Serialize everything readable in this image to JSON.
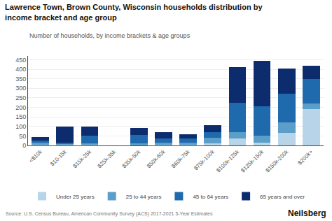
{
  "chart_data": {
    "type": "bar",
    "stacked": true,
    "title": "Lawrence Town, Brown County, Wisconsin households distribution by\nincome bracket and age group",
    "subtitle": "Number of households, by income brackets & age groups",
    "annotations": [
      "Source: U.S. Census Bureau, American Community Survey (ACS) 2017-2021 5-Year Estimates",
      "Neilsberg"
    ],
    "categories": [
      "<$10k",
      "$10-15k",
      "$15k-25k",
      "$25k-35k",
      "$35k-50k",
      "$50k-60k",
      "$60k-75k",
      "$75k-100k",
      "$100k-125k",
      "$125k-150k",
      "$150k-200k",
      "$200k+"
    ],
    "series": [
      {
        "name": "Under 25 years",
        "color": "#b8d4e8",
        "values": [
          5,
          5,
          5,
          0,
          0,
          5,
          5,
          10,
          35,
          15,
          65,
          190
        ]
      },
      {
        "name": "25 to 44 years",
        "color": "#5b9ec9",
        "values": [
          10,
          5,
          5,
          0,
          10,
          10,
          10,
          30,
          35,
          35,
          55,
          30
        ]
      },
      {
        "name": "45 to 64 years",
        "color": "#1f6aad",
        "values": [
          10,
          5,
          40,
          0,
          45,
          20,
          20,
          30,
          155,
          155,
          150,
          130
        ]
      },
      {
        "name": "65 years and over",
        "color": "#0d2c6e",
        "values": [
          20,
          85,
          50,
          0,
          35,
          35,
          25,
          35,
          185,
          240,
          135,
          70
        ]
      }
    ],
    "ylim": [
      0,
      470
    ],
    "yticks": [
      0,
      50,
      100,
      150,
      200,
      250,
      300,
      350,
      400,
      450
    ],
    "grid": true,
    "legend": "bottom"
  }
}
